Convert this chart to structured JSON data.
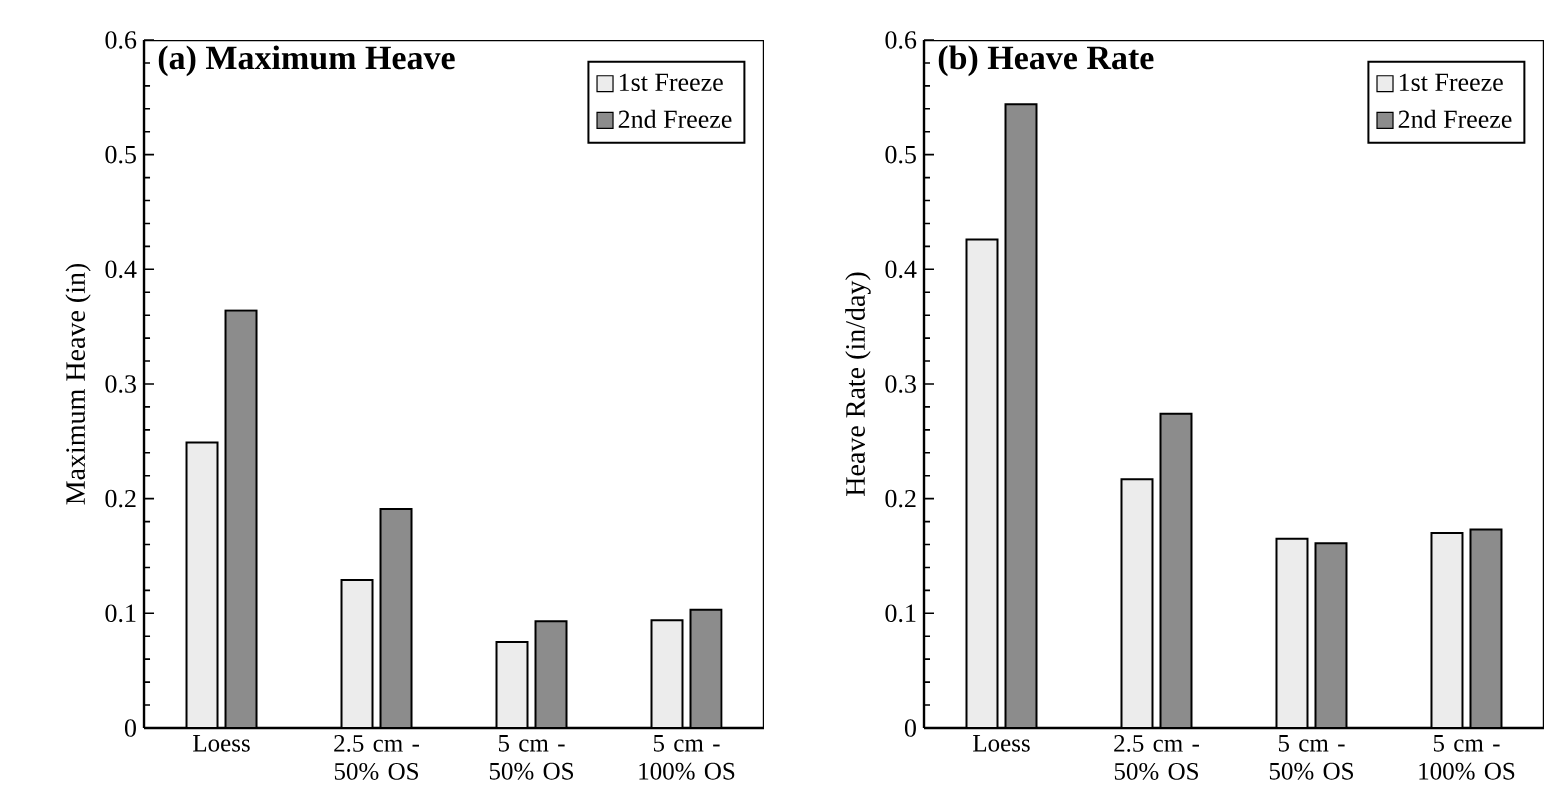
{
  "chart_data": [
    {
      "type": "bar",
      "title": "(a) Maximum Heave",
      "ylabel": "Maximum Heave (in)",
      "categories": [
        "Loess",
        "2.5 cm - 50% OS",
        "5 cm - 50% OS",
        "5 cm - 100% OS"
      ],
      "series": [
        {
          "name": "1st Freeze",
          "color": "#ececec",
          "values": [
            0.249,
            0.129,
            0.075,
            0.094
          ]
        },
        {
          "name": "2nd Freeze",
          "color": "#8c8c8c",
          "values": [
            0.364,
            0.191,
            0.093,
            0.103
          ]
        }
      ],
      "ylim": [
        0,
        0.6
      ],
      "yticks": [
        0,
        0.1,
        0.2,
        0.3,
        0.4,
        0.5,
        0.6
      ],
      "legend": "top right"
    },
    {
      "type": "bar",
      "title": "(b) Heave Rate",
      "ylabel": "Heave Rate (in/day)",
      "categories": [
        "Loess",
        "2.5 cm - 50% OS",
        "5 cm - 50% OS",
        "5 cm - 100% OS"
      ],
      "series": [
        {
          "name": "1st Freeze",
          "color": "#ececec",
          "values": [
            0.426,
            0.217,
            0.165,
            0.17
          ]
        },
        {
          "name": "2nd Freeze",
          "color": "#8c8c8c",
          "values": [
            0.544,
            0.274,
            0.161,
            0.173
          ]
        }
      ],
      "ylim": [
        0,
        0.6
      ],
      "yticks": [
        0,
        0.1,
        0.2,
        0.3,
        0.4,
        0.5,
        0.6
      ],
      "legend": "top right"
    }
  ]
}
